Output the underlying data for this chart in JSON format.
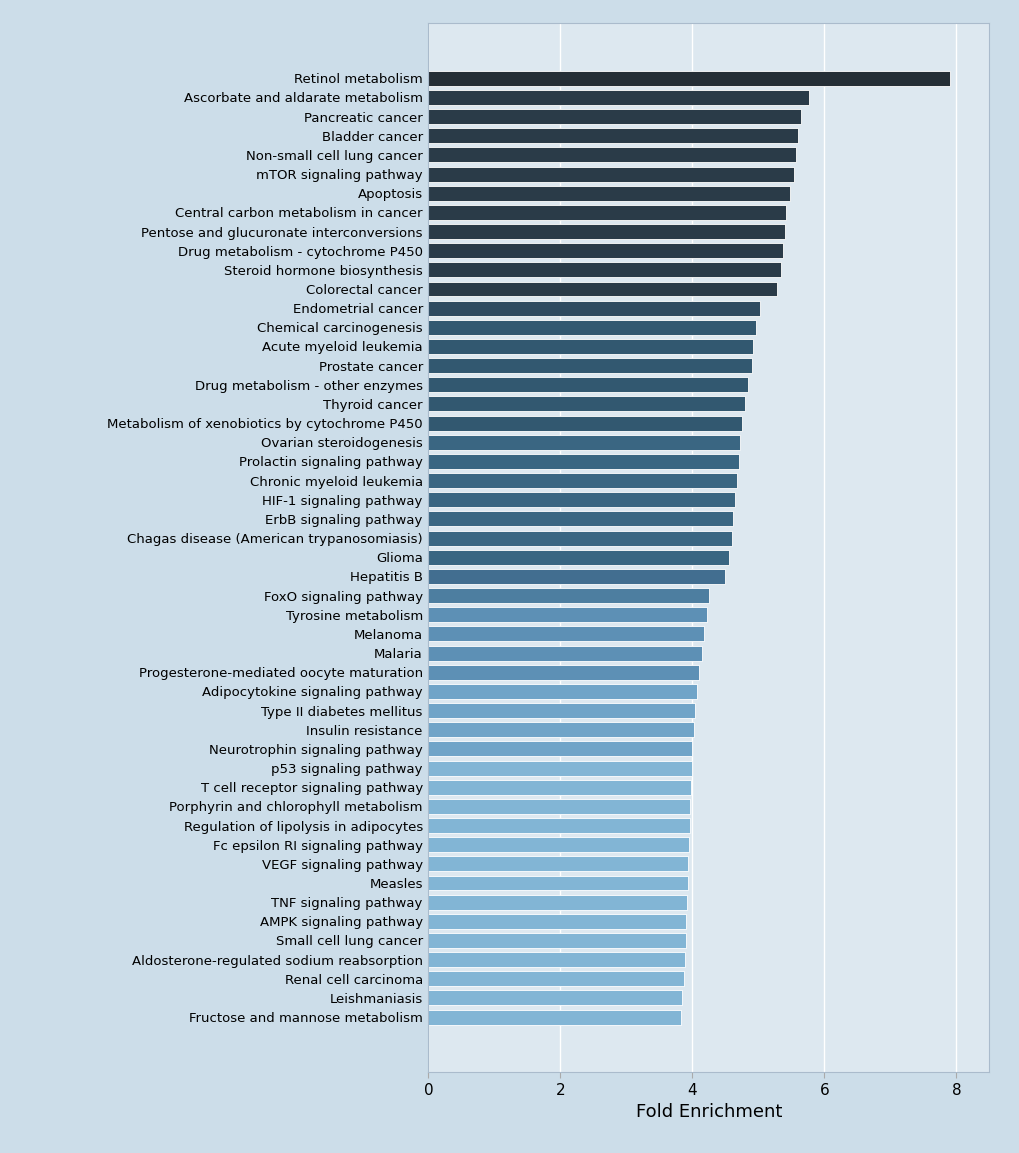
{
  "categories": [
    "Retinol metabolism",
    "Ascorbate and aldarate metabolism",
    "Pancreatic cancer",
    "Bladder cancer",
    "Non-small cell lung cancer",
    "mTOR signaling pathway",
    "Apoptosis",
    "Central carbon metabolism in cancer",
    "Pentose and glucuronate interconversions",
    "Drug metabolism - cytochrome P450",
    "Steroid hormone biosynthesis",
    "Colorectal cancer",
    "Endometrial cancer",
    "Chemical carcinogenesis",
    "Acute myeloid leukemia",
    "Prostate cancer",
    "Drug metabolism - other enzymes",
    "Thyroid cancer",
    "Metabolism of xenobiotics by cytochrome P450",
    "Ovarian steroidogenesis",
    "Prolactin signaling pathway",
    "Chronic myeloid leukemia",
    "HIF-1 signaling pathway",
    "ErbB signaling pathway",
    "Chagas disease (American trypanosomiasis)",
    "Glioma",
    "Hepatitis B",
    "FoxO signaling pathway",
    "Tyrosine metabolism",
    "Melanoma",
    "Malaria",
    "Progesterone-mediated oocyte maturation",
    "Adipocytokine signaling pathway",
    "Type II diabetes mellitus",
    "Insulin resistance",
    "Neurotrophin signaling pathway",
    "p53 signaling pathway",
    "T cell receptor signaling pathway",
    "Porphyrin and chlorophyll metabolism",
    "Regulation of lipolysis in adipocytes",
    "Fc epsilon RI signaling pathway",
    "VEGF signaling pathway",
    "Measles",
    "TNF signaling pathway",
    "AMPK signaling pathway",
    "Small cell lung cancer",
    "Aldosterone-regulated sodium reabsorption",
    "Renal cell carcinoma",
    "Leishmaniasis",
    "Fructose and mannose metabolism"
  ],
  "values": [
    7.9,
    5.76,
    5.65,
    5.6,
    5.57,
    5.54,
    5.48,
    5.42,
    5.4,
    5.38,
    5.35,
    5.28,
    5.02,
    4.97,
    4.92,
    4.9,
    4.84,
    4.8,
    4.75,
    4.72,
    4.7,
    4.67,
    4.65,
    4.62,
    4.6,
    4.55,
    4.5,
    4.25,
    4.22,
    4.18,
    4.14,
    4.1,
    4.07,
    4.04,
    4.02,
    4.0,
    3.99,
    3.98,
    3.97,
    3.96,
    3.95,
    3.94,
    3.93,
    3.92,
    3.91,
    3.9,
    3.89,
    3.87,
    3.85,
    3.82
  ],
  "color_thresholds": [
    7.5,
    5.25,
    5.0,
    4.75,
    4.55,
    4.4,
    4.25,
    4.1,
    4.0,
    3.9
  ],
  "colors": [
    "#252e36",
    "#2a3b48",
    "#2e4a60",
    "#325870",
    "#3a6682",
    "#426e90",
    "#4d7ea0",
    "#5d90b5",
    "#70a4c8",
    "#82b5d5"
  ],
  "figure_facecolor": "#ccdde9",
  "axes_facecolor": "#ccdde9",
  "plot_facecolor": "#dde8f0",
  "xlabel": "Fold Enrichment",
  "xlim_min": 0,
  "xlim_max": 8.5,
  "xticks": [
    0,
    2,
    4,
    6,
    8
  ],
  "xlabel_fontsize": 13,
  "ylabel_fontsize": 9.5,
  "xtick_fontsize": 11
}
